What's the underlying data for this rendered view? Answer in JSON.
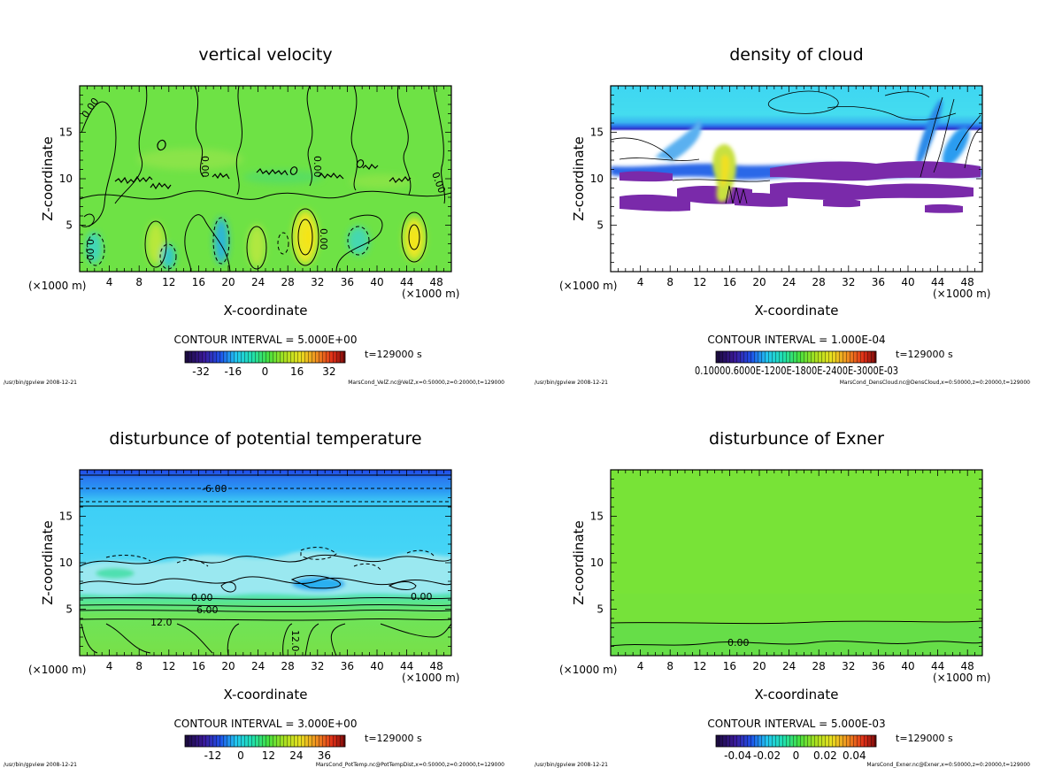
{
  "panels": [
    {
      "key": "velz",
      "title": "vertical velocity",
      "xlabel": "X-coordinate",
      "ylabel": "Z-coordinate",
      "x_unit_left": "(×1000 m)",
      "x_unit_right": "(×1000 m)",
      "contour_interval": "CONTOUR INTERVAL = 5.000E+00",
      "time_label": "t=129000 s",
      "footer_left": "/usr/bin/gpview  2008-12-21",
      "footer_right": "MarsCond_VelZ.nc@VelZ,x=0:50000,z=0:20000,t=129000",
      "colorbar_ticks": [
        "-32",
        "-16",
        "0",
        "16",
        "32"
      ],
      "colorbar_ticks_at": [
        -32,
        -16,
        0,
        16,
        32
      ],
      "colorbar_range": [
        -40,
        40
      ],
      "contour_labels": [
        "0.00",
        "0.00",
        "0.00",
        "0.00",
        "0.00",
        "0.00"
      ],
      "x_ticks": [
        "4",
        "8",
        "12",
        "16",
        "20",
        "24",
        "28",
        "32",
        "36",
        "40",
        "44",
        "48"
      ],
      "z_ticks": [
        "5",
        "10",
        "15"
      ]
    },
    {
      "key": "cloud",
      "title": "density of cloud",
      "xlabel": "X-coordinate",
      "ylabel": "Z-coordinate",
      "x_unit_left": "(×1000 m)",
      "x_unit_right": "(×1000 m)",
      "contour_interval": "CONTOUR INTERVAL = 1.000E-04",
      "time_label": "t=129000 s",
      "footer_left": "/usr/bin/gpview  2008-12-21",
      "footer_right": "MarsCond_DensCloud.nc@DensCloud,x=0:50000,z=0:20000,t=129000",
      "colorbar_ticklabels_overlap": "0.10000.6000E-1200E-1800E-2400E-3000E-03",
      "x_ticks": [
        "4",
        "8",
        "12",
        "16",
        "20",
        "24",
        "28",
        "32",
        "36",
        "40",
        "44",
        "48"
      ],
      "z_ticks": [
        "5",
        "10",
        "15"
      ]
    },
    {
      "key": "pottemp",
      "title": "disturbunce of potential temperature",
      "xlabel": "X-coordinate",
      "ylabel": "Z-coordinate",
      "x_unit_left": "(×1000 m)",
      "x_unit_right": "(×1000 m)",
      "contour_interval": "CONTOUR INTERVAL = 3.000E+00",
      "time_label": "t=129000 s",
      "footer_left": "/usr/bin/gpview  2008-12-21",
      "footer_right": "MarsCond_PotTemp.nc@PotTempDist,x=0:50000,z=0:20000,t=129000",
      "colorbar_ticks": [
        "-12",
        "0",
        "12",
        "24",
        "36"
      ],
      "colorbar_ticks_at": [
        -12,
        0,
        12,
        24,
        36
      ],
      "colorbar_range": [
        -24,
        45
      ],
      "contour_labels": [
        "-6.00",
        "0.00",
        "6.00",
        "12.0",
        "12.0",
        "0.00"
      ],
      "x_ticks": [
        "4",
        "8",
        "12",
        "16",
        "20",
        "24",
        "28",
        "32",
        "36",
        "40",
        "44",
        "48"
      ],
      "z_ticks": [
        "5",
        "10",
        "15"
      ]
    },
    {
      "key": "exner",
      "title": "disturbunce of Exner",
      "xlabel": "X-coordinate",
      "ylabel": "Z-coordinate",
      "x_unit_left": "(×1000 m)",
      "x_unit_right": "(×1000 m)",
      "contour_interval": "CONTOUR INTERVAL = 5.000E-03",
      "time_label": "t=129000 s",
      "footer_left": "/usr/bin/gpview  2008-12-21",
      "footer_right": "MarsCond_Exner.nc@Exner,x=0:50000,z=0:20000,t=129000",
      "colorbar_ticks": [
        "-0.04",
        "-0.02",
        "0",
        "0.02",
        "0.04"
      ],
      "colorbar_ticks_at": [
        -0.04,
        -0.02,
        0,
        0.02,
        0.04
      ],
      "colorbar_range": [
        -0.055,
        0.055
      ],
      "contour_labels": [
        "0.00"
      ],
      "x_ticks": [
        "4",
        "8",
        "12",
        "16",
        "20",
        "24",
        "28",
        "32",
        "36",
        "40",
        "44",
        "48"
      ],
      "z_ticks": [
        "5",
        "10",
        "15"
      ]
    }
  ],
  "chart_data": [
    {
      "type": "heatmap",
      "title": "vertical velocity",
      "xlabel": "X-coordinate",
      "ylabel": "Z-coordinate",
      "xlim": [
        0,
        50
      ],
      "ylim": [
        0,
        20
      ],
      "x_unit": "×1000 m",
      "x_ticks": [
        4,
        8,
        12,
        16,
        20,
        24,
        28,
        32,
        36,
        40,
        44,
        48
      ],
      "z_ticks": [
        5,
        10,
        15
      ],
      "contour_interval": 5.0,
      "colorbar_ticks": [
        -32,
        -16,
        0,
        16,
        32
      ],
      "time_s": 129000
    },
    {
      "type": "heatmap",
      "title": "density of cloud",
      "xlabel": "X-coordinate",
      "ylabel": "Z-coordinate",
      "xlim": [
        0,
        50
      ],
      "ylim": [
        0,
        20
      ],
      "x_unit": "×1000 m",
      "x_ticks": [
        4,
        8,
        12,
        16,
        20,
        24,
        28,
        32,
        36,
        40,
        44,
        48
      ],
      "z_ticks": [
        5,
        10,
        15
      ],
      "contour_interval": 0.0001,
      "time_s": 129000
    },
    {
      "type": "heatmap",
      "title": "disturbunce of potential temperature",
      "xlabel": "X-coordinate",
      "ylabel": "Z-coordinate",
      "xlim": [
        0,
        50
      ],
      "ylim": [
        0,
        20
      ],
      "x_unit": "×1000 m",
      "x_ticks": [
        4,
        8,
        12,
        16,
        20,
        24,
        28,
        32,
        36,
        40,
        44,
        48
      ],
      "z_ticks": [
        5,
        10,
        15
      ],
      "contour_interval": 3.0,
      "colorbar_ticks": [
        -12,
        0,
        12,
        24,
        36
      ],
      "time_s": 129000
    },
    {
      "type": "heatmap",
      "title": "disturbunce of Exner",
      "xlabel": "X-coordinate",
      "ylabel": "Z-coordinate",
      "xlim": [
        0,
        50
      ],
      "ylim": [
        0,
        20
      ],
      "x_unit": "×1000 m",
      "x_ticks": [
        4,
        8,
        12,
        16,
        20,
        24,
        28,
        32,
        36,
        40,
        44,
        48
      ],
      "z_ticks": [
        5,
        10,
        15
      ],
      "contour_interval": 0.005,
      "colorbar_ticks": [
        -0.04,
        -0.02,
        0,
        0.02,
        0.04
      ],
      "time_s": 129000
    }
  ]
}
